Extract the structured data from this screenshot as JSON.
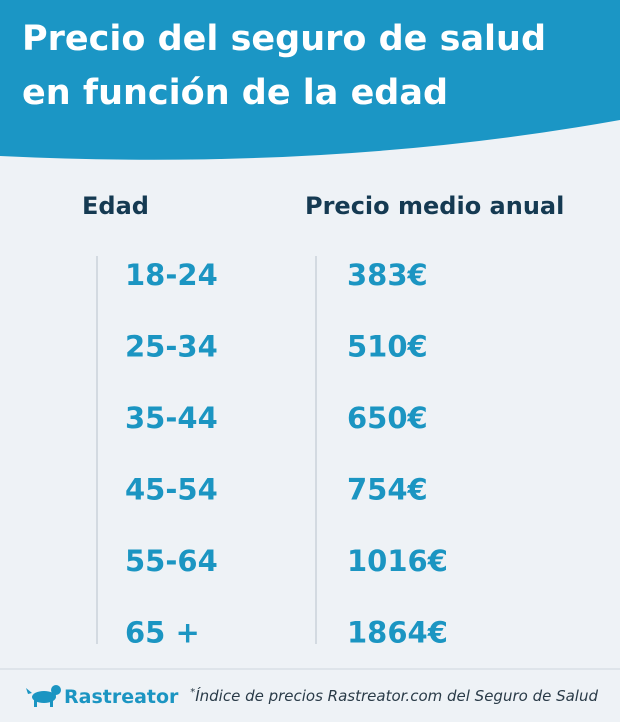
{
  "header": {
    "title_lines": [
      "Precio del seguro de salud",
      "en función de la edad"
    ]
  },
  "table": {
    "columns": [
      "Edad",
      "Precio medio anual"
    ],
    "rows": [
      [
        "18-24",
        "383€"
      ],
      [
        "25-34",
        "510€"
      ],
      [
        "35-44",
        "650€"
      ],
      [
        "45-54",
        "754€"
      ],
      [
        "55-64",
        "1016€"
      ],
      [
        "65 +",
        "1864€"
      ]
    ]
  },
  "footer": {
    "brand": "Rastreator",
    "footnote_mark": "*",
    "footnote": "Índice de precios Rastreator.com del Seguro de Salud"
  }
}
